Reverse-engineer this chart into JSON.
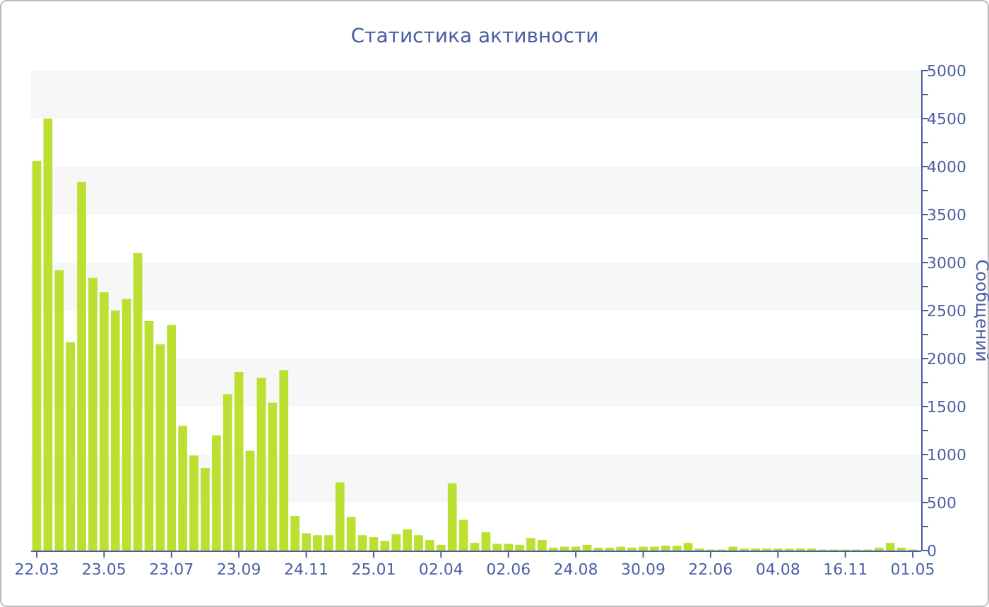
{
  "chart_data": {
    "type": "bar",
    "title": "Статистика активности",
    "ylabel": "Сообщений",
    "categories": [
      "22.03",
      null,
      null,
      null,
      null,
      null,
      "23.05",
      null,
      null,
      null,
      null,
      null,
      "23.07",
      null,
      null,
      null,
      null,
      null,
      "23.09",
      null,
      null,
      null,
      null,
      null,
      "24.11",
      null,
      null,
      null,
      null,
      null,
      "25.01",
      null,
      null,
      null,
      null,
      null,
      "02.04",
      null,
      null,
      null,
      null,
      null,
      "02.06",
      null,
      null,
      null,
      null,
      null,
      "24.08",
      null,
      null,
      null,
      null,
      null,
      "30.09",
      null,
      null,
      null,
      null,
      null,
      "22.06",
      null,
      null,
      null,
      null,
      null,
      "04.08",
      null,
      null,
      null,
      null,
      null,
      "16.11",
      null,
      null,
      null,
      null,
      null,
      "01.05"
    ],
    "values": [
      4060,
      4500,
      2920,
      2170,
      3840,
      2840,
      2690,
      2500,
      2620,
      3100,
      2390,
      2150,
      2350,
      1300,
      990,
      860,
      1200,
      1630,
      1860,
      1040,
      1800,
      1540,
      1880,
      360,
      180,
      160,
      160,
      710,
      350,
      160,
      140,
      100,
      170,
      220,
      160,
      110,
      60,
      700,
      320,
      80,
      190,
      70,
      70,
      60,
      130,
      110,
      30,
      40,
      40,
      60,
      30,
      30,
      40,
      30,
      40,
      40,
      50,
      50,
      80,
      20,
      10,
      10,
      40,
      20,
      20,
      20,
      20,
      20,
      20,
      20,
      10,
      10,
      10,
      10,
      10,
      30,
      80,
      30,
      10
    ],
    "color": "#bbe032",
    "ylim": [
      0,
      5000
    ],
    "yticks": [
      0,
      {
        "value": 250,
        "label": null
      },
      500,
      {
        "value": 750,
        "label": null
      },
      1000,
      {
        "value": 1250,
        "label": null
      },
      1500,
      {
        "value": 1750,
        "label": null
      },
      2000,
      {
        "value": 2250,
        "label": null
      },
      2500,
      {
        "value": 2750,
        "label": null
      },
      3000,
      {
        "value": 3250,
        "label": null
      },
      3500,
      {
        "value": 3750,
        "label": null
      },
      4000,
      {
        "value": 4250,
        "label": null
      },
      4500,
      {
        "value": 4750,
        "label": null
      },
      5000
    ],
    "bands": [
      {
        "axis": "y",
        "from": 500,
        "to": 1000,
        "color": "#f7f7f7"
      },
      {
        "axis": "y",
        "from": 1500,
        "to": 2000,
        "color": "#f7f7f7"
      },
      {
        "axis": "y",
        "from": 2500,
        "to": 3000,
        "color": "#f7f7f7"
      },
      {
        "axis": "y",
        "from": 3500,
        "to": 4000,
        "color": "#f7f7f7"
      },
      {
        "axis": "y",
        "from": 4500,
        "to": 5000,
        "color": "#f7f7f7"
      }
    ],
    "grid": false
  }
}
